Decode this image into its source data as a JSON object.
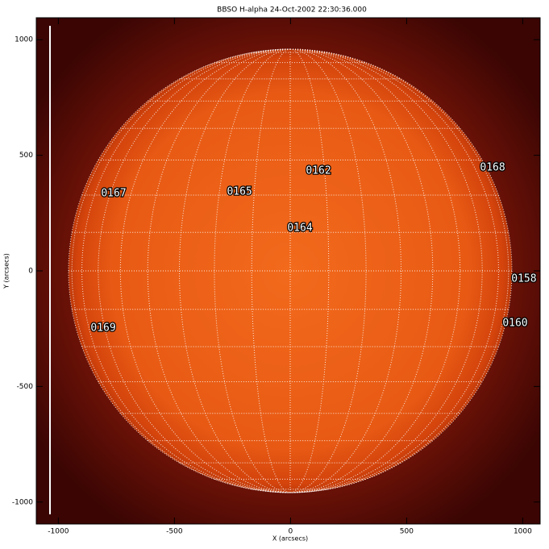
{
  "chart_data": {
    "type": "image",
    "title": "BBSO H-alpha 24-Oct-2002 22:30:36.000",
    "xlabel": "X (arcsecs)",
    "ylabel": "Y (arcsecs)",
    "xlim": [
      -1095,
      1075
    ],
    "ylim": [
      -1095,
      1095
    ],
    "xticks": [
      -1000,
      -500,
      0,
      500,
      1000
    ],
    "yticks": [
      -1000,
      -500,
      0,
      500,
      1000
    ],
    "grid": true,
    "annotations": [
      {
        "text": "0162",
        "x": 66,
        "y": 432
      },
      {
        "text": "0168",
        "x": 816,
        "y": 446
      },
      {
        "text": "0167",
        "x": -816,
        "y": 334
      },
      {
        "text": "0165",
        "x": -274,
        "y": 341
      },
      {
        "text": "0164",
        "x": -14,
        "y": 185
      },
      {
        "text": "0158",
        "x": 951,
        "y": -35
      },
      {
        "text": "0169",
        "x": -861,
        "y": -247
      },
      {
        "text": "0160",
        "x": 913,
        "y": -226
      }
    ]
  }
}
